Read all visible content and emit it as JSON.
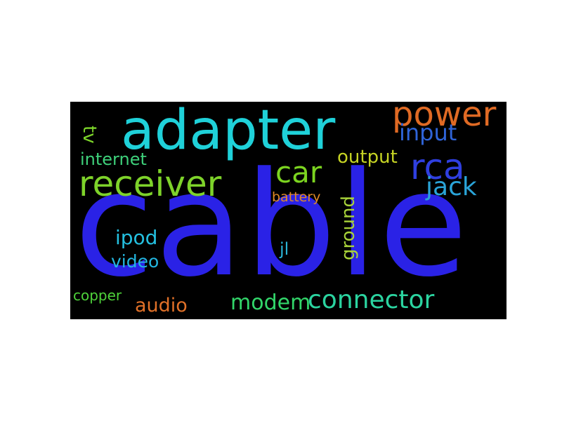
{
  "wordcloud": {
    "background": "#000000",
    "words": [
      {
        "key": "cable",
        "text": "cable",
        "color": "#2a22e6"
      },
      {
        "key": "adapter",
        "text": "adapter",
        "color": "#1fd1d9"
      },
      {
        "key": "power",
        "text": "power",
        "color": "#e06a24"
      },
      {
        "key": "input",
        "text": "input",
        "color": "#2f64d8"
      },
      {
        "key": "rca",
        "text": "rca",
        "color": "#2f3fe0"
      },
      {
        "key": "car",
        "text": "car",
        "color": "#7cd420"
      },
      {
        "key": "receiver",
        "text": "receiver",
        "color": "#7ed32a"
      },
      {
        "key": "output",
        "text": "output",
        "color": "#c6d424"
      },
      {
        "key": "internet",
        "text": "internet",
        "color": "#3ed07a"
      },
      {
        "key": "tv",
        "text": "tv",
        "color": "#7cd42a"
      },
      {
        "key": "jack",
        "text": "jack",
        "color": "#2aa4d8"
      },
      {
        "key": "battery",
        "text": "battery",
        "color": "#e08a28"
      },
      {
        "key": "ground",
        "text": "ground",
        "color": "#a9d43a"
      },
      {
        "key": "ipod",
        "text": "ipod",
        "color": "#24c0e0"
      },
      {
        "key": "video",
        "text": "video",
        "color": "#23b6df"
      },
      {
        "key": "jl",
        "text": "jl",
        "color": "#2ab4d6"
      },
      {
        "key": "copper",
        "text": "copper",
        "color": "#4ed23a"
      },
      {
        "key": "audio",
        "text": "audio",
        "color": "#e07028"
      },
      {
        "key": "modem",
        "text": "modem",
        "color": "#32d66a"
      },
      {
        "key": "connector",
        "text": "connector",
        "color": "#2bd4a0"
      }
    ]
  }
}
